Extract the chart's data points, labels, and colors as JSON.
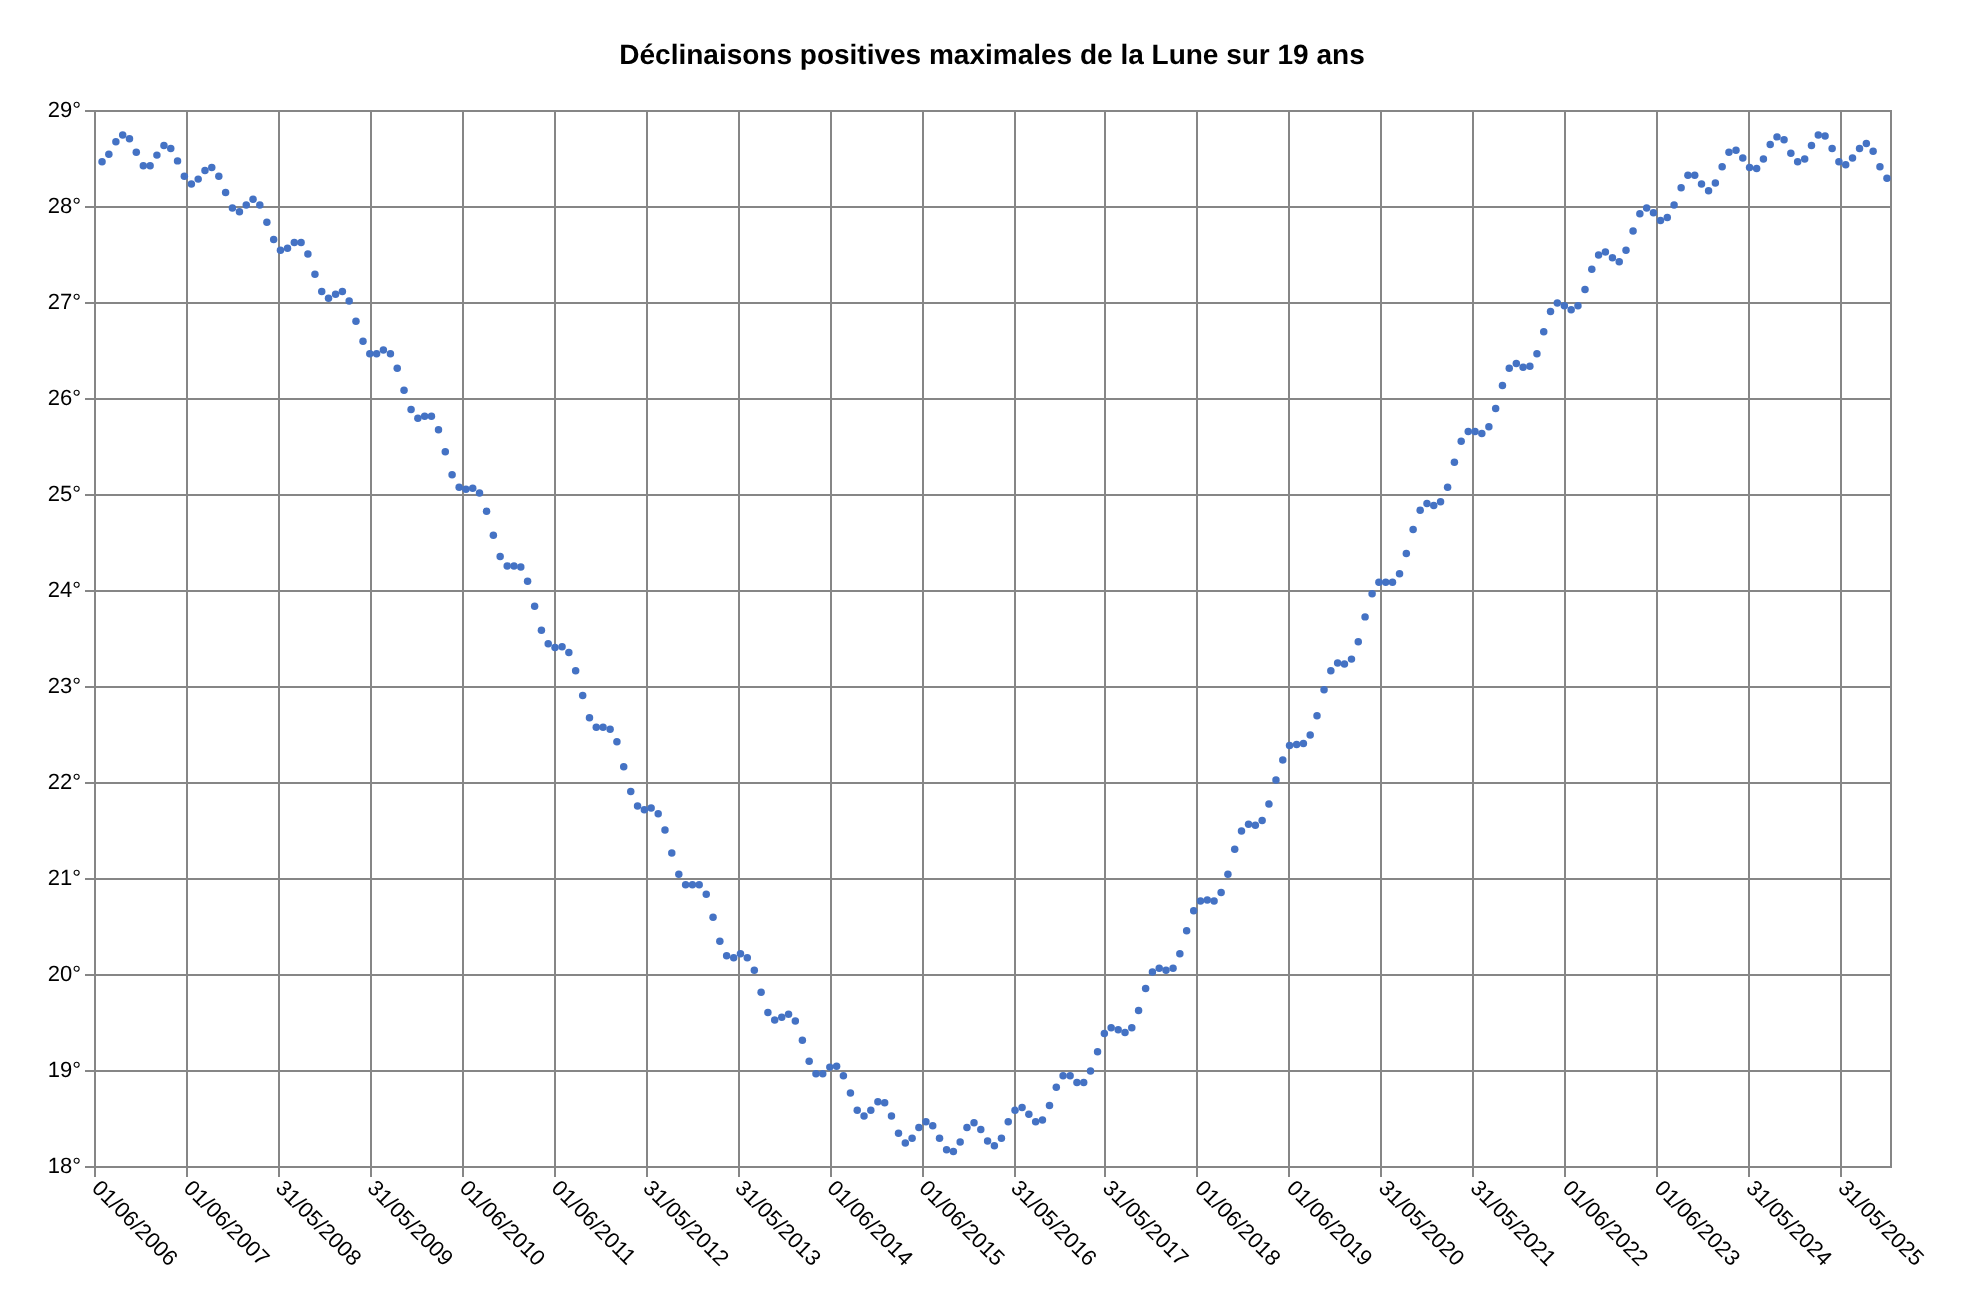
{
  "chart_data": {
    "type": "scatter",
    "title": "Déclinaisons positives maximales de la Lune sur 19 ans",
    "xlim": [
      "2006-06-01",
      "2025-12-15"
    ],
    "xticks": [
      {
        "value": "2006-06-01",
        "label": "01/06/2006"
      },
      {
        "value": "2007-06-01",
        "label": "01/06/2007"
      },
      {
        "value": "2008-05-31",
        "label": "31/05/2008"
      },
      {
        "value": "2009-05-31",
        "label": "31/05/2009"
      },
      {
        "value": "2010-06-01",
        "label": "01/06/2010"
      },
      {
        "value": "2011-06-01",
        "label": "01/06/2011"
      },
      {
        "value": "2012-05-31",
        "label": "31/05/2012"
      },
      {
        "value": "2013-05-31",
        "label": "31/05/2013"
      },
      {
        "value": "2014-06-01",
        "label": "01/06/2014"
      },
      {
        "value": "2015-06-01",
        "label": "01/06/2015"
      },
      {
        "value": "2016-05-31",
        "label": "31/05/2016"
      },
      {
        "value": "2017-05-31",
        "label": "31/05/2017"
      },
      {
        "value": "2018-06-01",
        "label": "01/06/2018"
      },
      {
        "value": "2019-06-01",
        "label": "01/06/2019"
      },
      {
        "value": "2020-05-31",
        "label": "31/05/2020"
      },
      {
        "value": "2021-05-31",
        "label": "31/05/2021"
      },
      {
        "value": "2022-06-01",
        "label": "01/06/2022"
      },
      {
        "value": "2023-06-01",
        "label": "01/06/2023"
      },
      {
        "value": "2024-05-31",
        "label": "31/05/2024"
      },
      {
        "value": "2025-05-31",
        "label": "31/05/2025"
      }
    ],
    "ylim": [
      18,
      29
    ],
    "yticks": [
      {
        "value": 18,
        "label": "18°"
      },
      {
        "value": 19,
        "label": "19°"
      },
      {
        "value": 20,
        "label": "20°"
      },
      {
        "value": 21,
        "label": "21°"
      },
      {
        "value": 22,
        "label": "22°"
      },
      {
        "value": 23,
        "label": "23°"
      },
      {
        "value": 24,
        "label": "24°"
      },
      {
        "value": 25,
        "label": "25°"
      },
      {
        "value": 26,
        "label": "26°"
      },
      {
        "value": 27,
        "label": "27°"
      },
      {
        "value": 28,
        "label": "28°"
      },
      {
        "value": 29,
        "label": "29°"
      }
    ],
    "grid": true,
    "marker": "circle",
    "series": [
      {
        "color": "#4472c4",
        "x": [
          "2006-07-03",
          "2006-07-30",
          "2006-08-27",
          "2006-09-23",
          "2006-10-20",
          "2006-11-16",
          "2006-12-14",
          "2007-01-10",
          "2007-02-06",
          "2007-03-06",
          "2007-04-02",
          "2007-04-29",
          "2007-05-26",
          "2007-06-23",
          "2007-07-20",
          "2007-08-16",
          "2007-09-12",
          "2007-10-10",
          "2007-11-06",
          "2007-12-03",
          "2007-12-31",
          "2008-01-27",
          "2008-02-23",
          "2008-03-21",
          "2008-04-18",
          "2008-05-15",
          "2008-06-11",
          "2008-07-09",
          "2008-08-05",
          "2008-09-01",
          "2008-09-28",
          "2008-10-26",
          "2008-11-22",
          "2008-12-19",
          "2009-01-16",
          "2009-02-12",
          "2009-03-11",
          "2009-04-07",
          "2009-05-05",
          "2009-06-01",
          "2009-06-28",
          "2009-07-25",
          "2009-08-22",
          "2009-09-18",
          "2009-10-15",
          "2009-11-12",
          "2009-12-09",
          "2010-01-05",
          "2010-02-01",
          "2010-03-01",
          "2010-03-28",
          "2010-04-24",
          "2010-05-22",
          "2010-06-18",
          "2010-07-15",
          "2010-08-11",
          "2010-09-08",
          "2010-10-05",
          "2010-11-01",
          "2010-11-29",
          "2010-12-26",
          "2011-01-22",
          "2011-02-18",
          "2011-03-18",
          "2011-04-14",
          "2011-05-11",
          "2011-06-07",
          "2011-07-05",
          "2011-08-01",
          "2011-08-28",
          "2011-09-25",
          "2011-10-22",
          "2011-11-18",
          "2011-12-15",
          "2012-01-12",
          "2012-02-08",
          "2012-03-06",
          "2012-04-03",
          "2012-04-30",
          "2012-05-27",
          "2012-06-23",
          "2012-07-21",
          "2012-08-17",
          "2012-09-13",
          "2012-10-11",
          "2012-11-07",
          "2012-12-04",
          "2012-12-31",
          "2013-01-28",
          "2013-02-24",
          "2013-03-23",
          "2013-04-19",
          "2013-05-17",
          "2013-06-13",
          "2013-07-10",
          "2013-08-07",
          "2013-09-03",
          "2013-09-30",
          "2013-10-27",
          "2013-11-24",
          "2013-12-21",
          "2014-01-17",
          "2014-02-14",
          "2014-03-13",
          "2014-04-09",
          "2014-05-06",
          "2014-06-03",
          "2014-06-30",
          "2014-07-27",
          "2014-08-24",
          "2014-09-20",
          "2014-10-17",
          "2014-11-13",
          "2014-12-11",
          "2015-01-07",
          "2015-02-03",
          "2015-03-03",
          "2015-03-30",
          "2015-04-26",
          "2015-05-23",
          "2015-06-20",
          "2015-07-17",
          "2015-08-13",
          "2015-09-10",
          "2015-10-07",
          "2015-11-03",
          "2015-11-30",
          "2015-12-28",
          "2016-01-24",
          "2016-02-20",
          "2016-03-18",
          "2016-04-15",
          "2016-05-12",
          "2016-06-08",
          "2016-07-06",
          "2016-08-02",
          "2016-08-29",
          "2016-09-25",
          "2016-10-23",
          "2016-11-19",
          "2016-12-16",
          "2017-01-13",
          "2017-02-09",
          "2017-03-08",
          "2017-04-04",
          "2017-05-02",
          "2017-05-29",
          "2017-06-25",
          "2017-07-23",
          "2017-08-19",
          "2017-09-15",
          "2017-10-12",
          "2017-11-09",
          "2017-12-06",
          "2018-01-02",
          "2018-01-29",
          "2018-02-26",
          "2018-03-25",
          "2018-04-21",
          "2018-05-19",
          "2018-06-15",
          "2018-07-12",
          "2018-08-08",
          "2018-09-05",
          "2018-10-02",
          "2018-10-29",
          "2018-11-25",
          "2018-12-23",
          "2019-01-19",
          "2019-02-15",
          "2019-03-14",
          "2019-04-11",
          "2019-05-08",
          "2019-06-04",
          "2019-07-02",
          "2019-07-29",
          "2019-08-25",
          "2019-09-21",
          "2019-10-19",
          "2019-11-15",
          "2019-12-12",
          "2020-01-08",
          "2020-02-05",
          "2020-03-03",
          "2020-03-30",
          "2020-04-27",
          "2020-05-24",
          "2020-06-20",
          "2020-07-17",
          "2020-08-14",
          "2020-09-10",
          "2020-10-07",
          "2020-11-04",
          "2020-12-01",
          "2020-12-28",
          "2021-01-24",
          "2021-02-21",
          "2021-03-20",
          "2021-04-16",
          "2021-05-14",
          "2021-06-10",
          "2021-07-07",
          "2021-08-04",
          "2021-08-31",
          "2021-09-27",
          "2021-10-24",
          "2021-11-21",
          "2021-12-18",
          "2022-01-14",
          "2022-02-11",
          "2022-03-10",
          "2022-04-06",
          "2022-05-03",
          "2022-05-31",
          "2022-06-27",
          "2022-07-24",
          "2022-08-21",
          "2022-09-17",
          "2022-10-14",
          "2022-11-10",
          "2022-12-08",
          "2023-01-04",
          "2023-01-31",
          "2023-02-28",
          "2023-03-27",
          "2023-04-23",
          "2023-05-20",
          "2023-06-17",
          "2023-07-14",
          "2023-08-10",
          "2023-09-07",
          "2023-10-04",
          "2023-10-31",
          "2023-11-27",
          "2023-12-25",
          "2024-01-21",
          "2024-02-17",
          "2024-03-15",
          "2024-04-12",
          "2024-05-09",
          "2024-06-05",
          "2024-07-03",
          "2024-07-30",
          "2024-08-26",
          "2024-09-22",
          "2024-10-20",
          "2024-11-16",
          "2024-12-13",
          "2025-01-10",
          "2025-02-06",
          "2025-03-05",
          "2025-04-01",
          "2025-04-29",
          "2025-05-26",
          "2025-06-22",
          "2025-07-19",
          "2025-08-16",
          "2025-09-12",
          "2025-10-09",
          "2025-11-05",
          "2025-12-03"
        ],
        "values": [
          28.46,
          28.54,
          28.67,
          28.74,
          28.7,
          28.56,
          28.42,
          28.42,
          28.53,
          28.63,
          28.6,
          28.47,
          28.31,
          28.23,
          28.28,
          28.37,
          28.4,
          28.31,
          28.14,
          27.98,
          27.94,
          28.01,
          28.07,
          28.01,
          27.83,
          27.65,
          27.54,
          27.56,
          27.62,
          27.62,
          27.5,
          27.29,
          27.11,
          27.04,
          27.08,
          27.11,
          27.01,
          26.8,
          26.59,
          26.46,
          26.46,
          26.5,
          26.46,
          26.31,
          26.08,
          25.88,
          25.79,
          25.81,
          25.81,
          25.67,
          25.44,
          25.2,
          25.07,
          25.05,
          25.06,
          25.01,
          24.82,
          24.57,
          24.35,
          24.25,
          24.25,
          24.24,
          24.09,
          23.83,
          23.58,
          23.44,
          23.4,
          23.41,
          23.35,
          23.16,
          22.9,
          22.67,
          22.57,
          22.57,
          22.55,
          22.42,
          22.16,
          21.9,
          21.75,
          21.71,
          21.73,
          21.67,
          21.5,
          21.26,
          21.04,
          20.93,
          20.93,
          20.93,
          20.83,
          20.59,
          20.34,
          20.19,
          20.17,
          20.21,
          20.17,
          20.04,
          19.81,
          19.6,
          19.52,
          19.55,
          19.58,
          19.51,
          19.31,
          19.09,
          18.96,
          18.96,
          19.03,
          19.04,
          18.94,
          18.76,
          18.58,
          18.52,
          18.58,
          18.67,
          18.66,
          18.52,
          18.34,
          18.24,
          18.29,
          18.4,
          18.46,
          18.42,
          18.29,
          18.17,
          18.15,
          18.25,
          18.4,
          18.45,
          18.38,
          18.26,
          18.21,
          18.29,
          18.46,
          18.58,
          18.61,
          18.54,
          18.46,
          18.48,
          18.63,
          18.82,
          18.94,
          18.94,
          18.87,
          18.87,
          18.99,
          19.19,
          19.38,
          19.44,
          19.42,
          19.39,
          19.44,
          19.62,
          19.85,
          20.02,
          20.06,
          20.04,
          20.06,
          20.21,
          20.45,
          20.66,
          20.76,
          20.77,
          20.76,
          20.85,
          21.04,
          21.3,
          21.49,
          21.56,
          21.55,
          21.6,
          21.77,
          22.02,
          22.23,
          22.38,
          22.39,
          22.4,
          22.49,
          22.69,
          22.96,
          23.16,
          23.24,
          23.23,
          23.28,
          23.46,
          23.72,
          23.96,
          24.08,
          24.08,
          24.08,
          24.17,
          24.38,
          24.63,
          24.83,
          24.9,
          24.88,
          24.92,
          25.07,
          25.33,
          25.55,
          25.65,
          25.65,
          25.63,
          25.7,
          25.89,
          26.13,
          26.31,
          26.36,
          26.32,
          26.33,
          26.46,
          26.69,
          26.9,
          26.99,
          26.96,
          26.92,
          26.96,
          27.13,
          27.34,
          27.49,
          27.52,
          27.46,
          27.42,
          27.54,
          27.74,
          27.92,
          27.98,
          27.93,
          27.85,
          27.88,
          28.01,
          28.19,
          28.32,
          28.32,
          28.23,
          28.16,
          28.24,
          28.41,
          28.56,
          28.58,
          28.5,
          28.4,
          28.39,
          28.49,
          28.64,
          28.72,
          28.69,
          28.55,
          28.46,
          28.49,
          28.63,
          28.74,
          28.73,
          28.6,
          28.46,
          28.43,
          28.5,
          28.6,
          28.65,
          28.57,
          28.41,
          28.29
        ]
      }
    ]
  }
}
